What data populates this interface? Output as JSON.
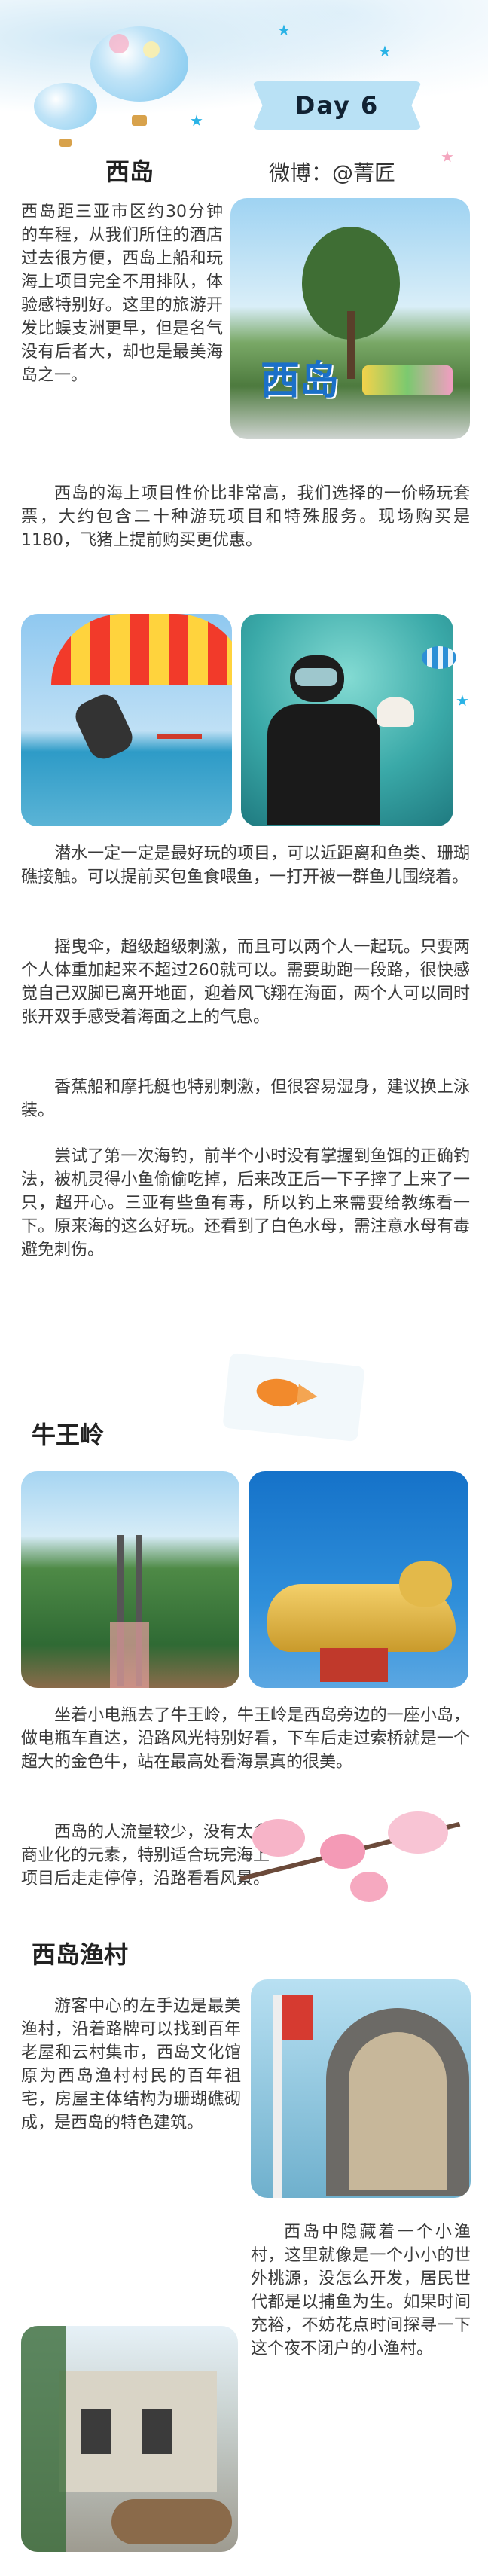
{
  "header": {
    "day_label": "Day 6",
    "weibo_label": "微博：@菁匠"
  },
  "section1": {
    "title": "西岛",
    "photo_sign": "西岛",
    "p1": "西岛距三亚市区约30分钟的车程，从我们所住的酒店过去很方便，西岛上船和玩海上项目完全不用排队，体验感特别好。这里的旅游开发比蜈支洲更早，但是名气没有后者大，却也是最美海岛之一。",
    "p2": "西岛的海上项目性价比非常高，我们选择的一价畅玩套票，大约包含二十种游玩项目和特殊服务。现场购买是1180，飞猪上提前购买更优惠。"
  },
  "section2": {
    "p1": "潜水一定一定是最好玩的项目，可以近距离和鱼类、珊瑚礁接触。可以提前买包鱼食喂鱼，一打开被一群鱼儿围绕着。",
    "p2": "摇曳伞，超级超级刺激，而且可以两个人一起玩。只要两个人体重加起来不超过260就可以。需要助跑一段路，很快感觉自己双脚已离开地面，迎着风飞翔在海面，两个人可以同时张开双手感受着海面之上的气息。",
    "p3": "香蕉船和摩托艇也特别刺激，但很容易湿身，建议换上泳装。",
    "p4": "尝试了第一次海钓，前半个小时没有掌握到鱼饵的正确钓法，被机灵得小鱼偷偷吃掉，后来改正后一下子摔了上来了一只，超开心。三亚有些鱼有毒，所以钓上来需要给教练看一下。原来海的这么好玩。还看到了白色水母，需注意水母有毒避免刺伤。"
  },
  "section3": {
    "title": "牛王岭",
    "p1": "坐着小电瓶去了牛王岭，牛王岭是西岛旁边的一座小岛，做电瓶车直达，沿路风光特别好看，下车后走过索桥就是一个超大的金色牛，站在最高处看海景真的很美。",
    "p2": "西岛的人流量较少，没有太多商业化的元素，特别适合玩完海上项目后走走停停，沿路看看风景。"
  },
  "section4": {
    "title": "西岛渔村",
    "p1": "游客中心的左手边是最美渔村，沿着路牌可以找到百年老屋和云村集市，西岛文化馆原为西岛渔村村民的百年祖宅，房屋主体结构为珊瑚礁砌成，是西岛的特色建筑。",
    "p2": "西岛中隐藏着一个小渔村，这里就像是一个小小的世外桃源，没怎么开发，居民世代都是以捕鱼为生。如果时间充裕，不妨花点时间探寻一下这个夜不闭户的小渔村。"
  },
  "icons": [
    "hot-air-balloon-icon",
    "star-icon",
    "fish-icon",
    "shell-icon",
    "cherry-blossom-icon"
  ],
  "colors": {
    "accent_blue": "#2ab3e6",
    "banner_blue": "#b9e1f5",
    "text": "#3a3a3a"
  }
}
